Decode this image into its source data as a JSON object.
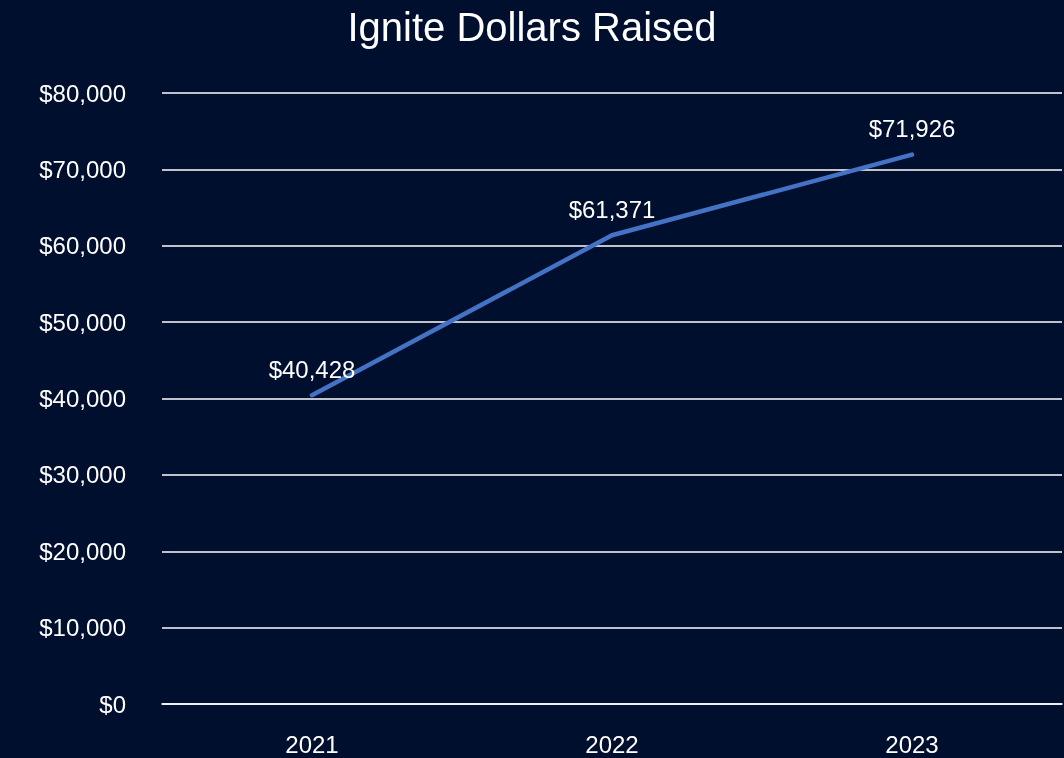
{
  "chart_data": {
    "type": "line",
    "title": "Ignite Dollars Raised",
    "categories": [
      "2021",
      "2022",
      "2023"
    ],
    "series": [
      {
        "color": "#4472c4",
        "values": [
          40428,
          61371,
          71926
        ],
        "value_labels": [
          "$40,428",
          "$61,371",
          "$71,926"
        ]
      }
    ],
    "ylim": [
      0,
      80000
    ],
    "yticks": [
      {
        "value": 0,
        "label": "$0"
      },
      {
        "value": 10000,
        "label": "$10,000"
      },
      {
        "value": 20000,
        "label": "$20,000"
      },
      {
        "value": 30000,
        "label": "$30,000"
      },
      {
        "value": 40000,
        "label": "$40,000"
      },
      {
        "value": 50000,
        "label": "$50,000"
      },
      {
        "value": 60000,
        "label": "$60,000"
      },
      {
        "value": 70000,
        "label": "$70,000"
      },
      {
        "value": 80000,
        "label": "$80,000"
      }
    ],
    "grid": "y",
    "marker": "none",
    "line_style": "solid"
  }
}
